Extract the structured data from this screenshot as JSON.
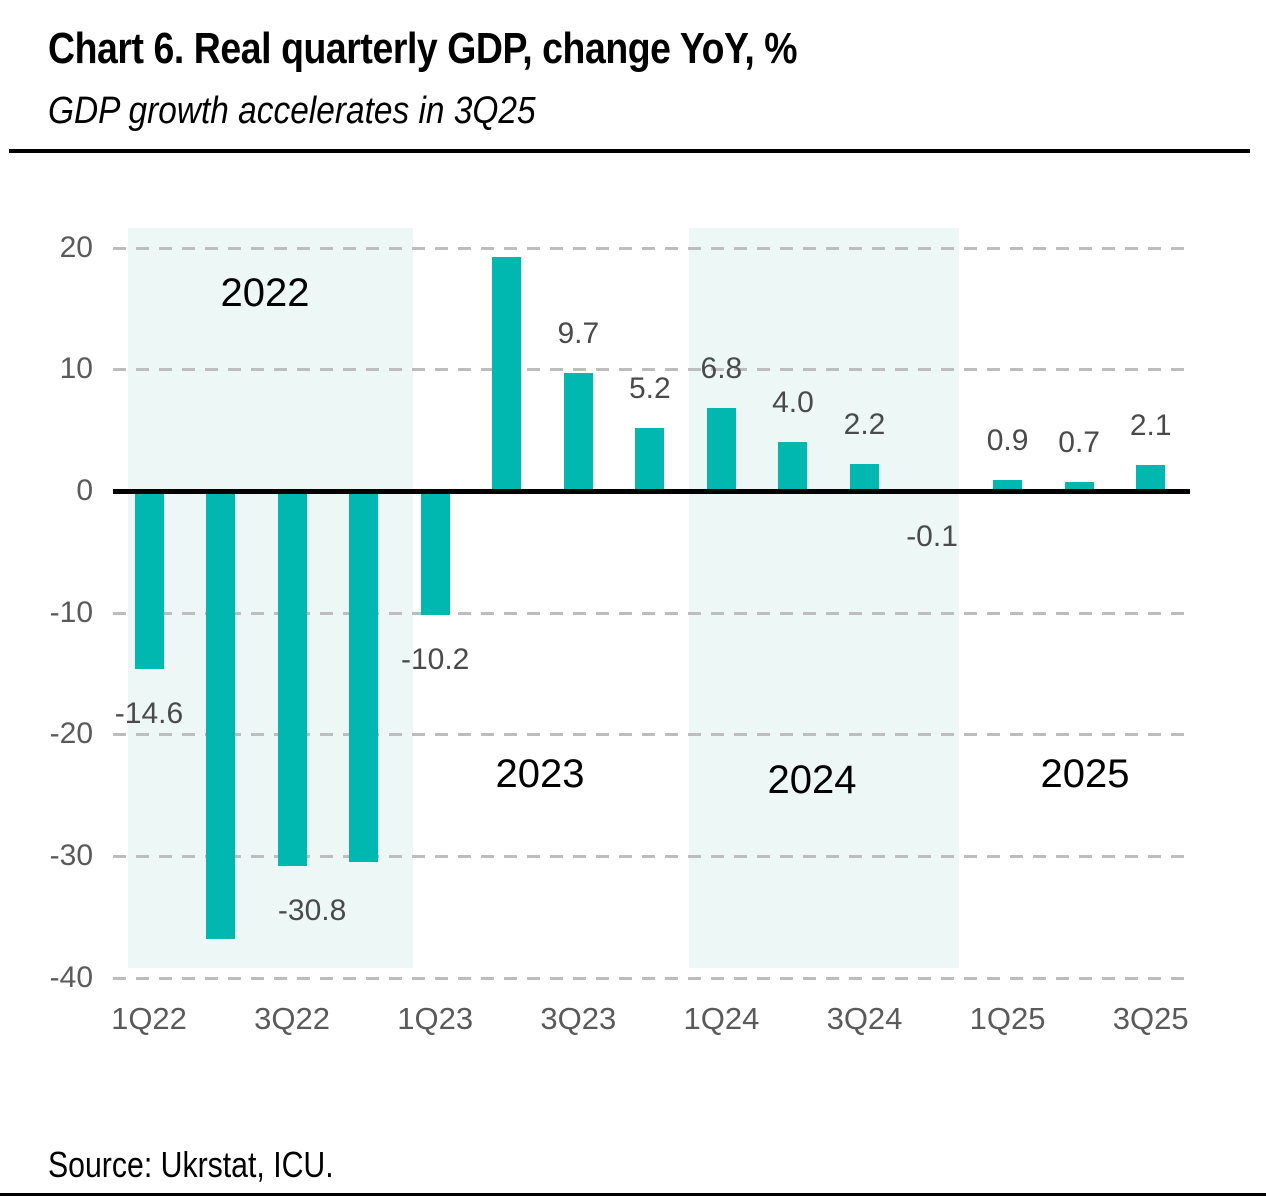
{
  "header": {
    "title": "Chart 6. Real quarterly GDP, change YoY, %",
    "subtitle": "GDP growth accelerates in 3Q25"
  },
  "footer": {
    "source": "Source: Ukrstat, ICU."
  },
  "colors": {
    "bar": "#00b8af",
    "year_band": "#edf7f5",
    "gridline": "#bdbdbd",
    "zero_axis": "#000000",
    "tick_text": "#5a5a5a",
    "data_label_text": "#4a4a4a"
  },
  "chart_data": {
    "type": "bar",
    "title": "Chart 6. Real quarterly GDP, change YoY, %",
    "subtitle": "GDP growth accelerates in 3Q25",
    "xlabel": "",
    "ylabel": "",
    "categories": [
      "1Q22",
      "2Q22",
      "3Q22",
      "4Q22",
      "1Q23",
      "2Q23",
      "3Q23",
      "4Q23",
      "1Q24",
      "2Q24",
      "3Q24",
      "4Q24",
      "1Q25",
      "2Q25",
      "3Q25"
    ],
    "values": [
      -14.6,
      -36.8,
      -30.8,
      -30.5,
      -10.2,
      19.2,
      9.7,
      5.2,
      6.8,
      4.0,
      2.2,
      -0.1,
      0.9,
      0.7,
      2.1
    ],
    "data_labels": [
      "-14.6",
      null,
      "-30.8",
      null,
      "-10.2",
      null,
      "9.7",
      "5.2",
      "6.8",
      "4.0",
      "2.2",
      "-0.1",
      "0.9",
      "0.7",
      "2.1"
    ],
    "x_tick_labels": [
      "1Q22",
      "3Q22",
      "1Q23",
      "3Q23",
      "1Q24",
      "3Q24",
      "1Q25",
      "3Q25"
    ],
    "y_ticks": [
      20,
      10,
      0,
      -10,
      -20,
      -30,
      -40
    ],
    "ylim": [
      -40,
      21.5
    ],
    "grid": "horizontal dashed",
    "legend": "none",
    "year_annotations": [
      "2022",
      "2023",
      "2024",
      "2025"
    ],
    "shaded_years": [
      "2022",
      "2024"
    ]
  }
}
